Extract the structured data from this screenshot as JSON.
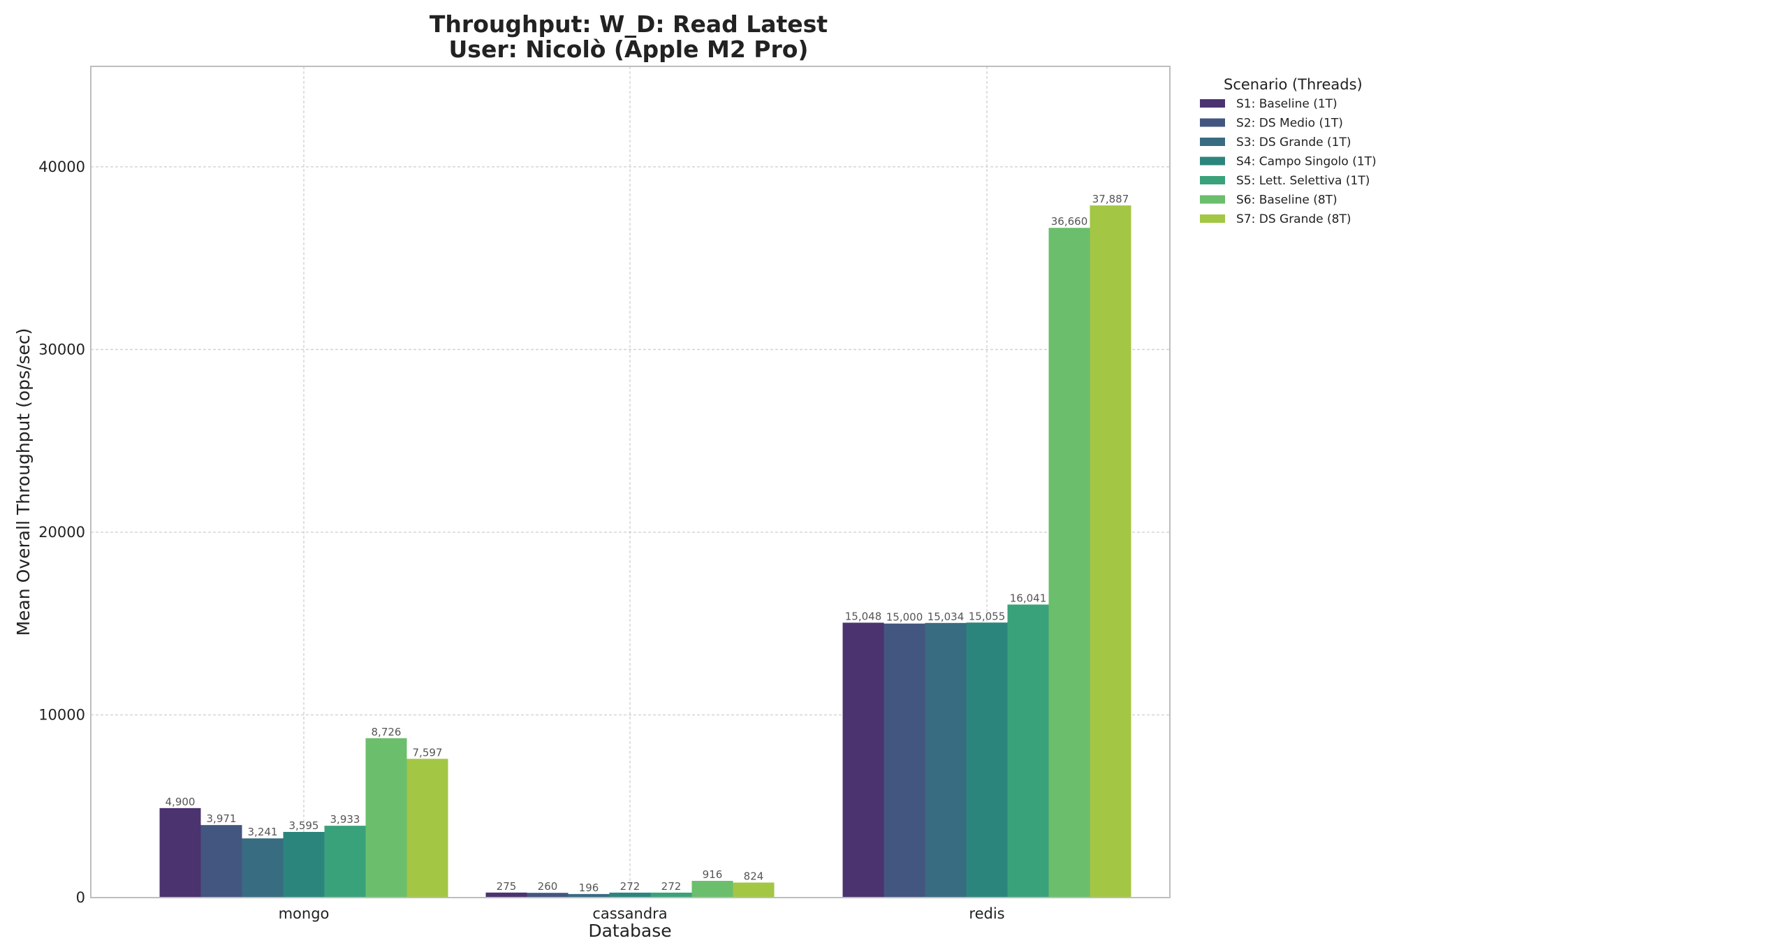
{
  "chart_data": {
    "type": "bar",
    "title_line1": "Throughput: W_D: Read Latest",
    "title_line2": "User: Nicolò (Apple M2 Pro)",
    "xlabel": "Database",
    "ylabel": "Mean Overall Throughput (ops/sec)",
    "categories": [
      "mongo",
      "cassandra",
      "redis"
    ],
    "ylim": [
      0,
      45500
    ],
    "yticks": [
      0,
      10000,
      20000,
      30000,
      40000
    ],
    "grid": true,
    "legend_title": "Scenario (Threads)",
    "legend_position": "outside-upper-right",
    "series": [
      {
        "name": "S1: Baseline (1T)",
        "color": "#4a336f",
        "values": [
          4900,
          275,
          15048
        ],
        "labels": [
          "4,900",
          "275",
          "15,048"
        ]
      },
      {
        "name": "S2: DS Medio (1T)",
        "color": "#43567f",
        "values": [
          3971,
          260,
          15000
        ],
        "labels": [
          "3,971",
          "260",
          "15,000"
        ]
      },
      {
        "name": "S3: DS Grande (1T)",
        "color": "#386c81",
        "values": [
          3241,
          196,
          15034
        ],
        "labels": [
          "3,241",
          "196",
          "15,034"
        ]
      },
      {
        "name": "S4: Campo Singolo (1T)",
        "color": "#2c857d",
        "values": [
          3595,
          272,
          15055
        ],
        "labels": [
          "3,595",
          "272",
          "15,055"
        ]
      },
      {
        "name": "S5: Lett. Selettiva (1T)",
        "color": "#3aa27a",
        "values": [
          3933,
          272,
          16041
        ],
        "labels": [
          "3,933",
          "272",
          "16,041"
        ]
      },
      {
        "name": "S6: Baseline (8T)",
        "color": "#6bbe6c",
        "values": [
          8726,
          916,
          36660
        ],
        "labels": [
          "8,726",
          "916",
          "36,660"
        ]
      },
      {
        "name": "S7: DS Grande (8T)",
        "color": "#a3c645",
        "values": [
          7597,
          824,
          37887
        ],
        "labels": [
          "7,597",
          "824",
          "37,887"
        ]
      }
    ]
  }
}
